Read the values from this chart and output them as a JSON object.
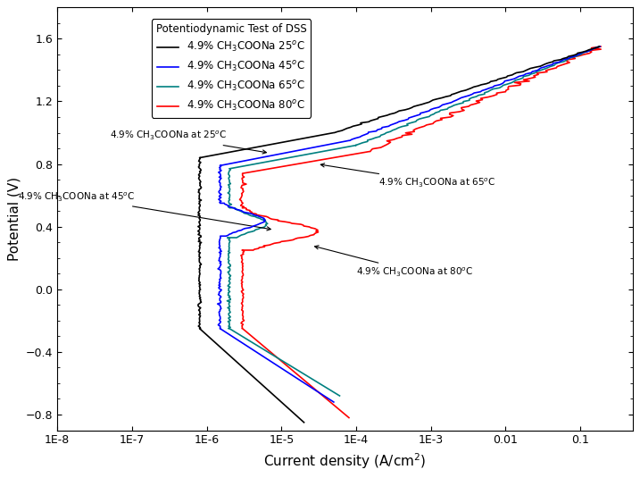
{
  "title": "Potentiodynamic Test of DSS",
  "xlabel": "Current density (A/cm$^2$)",
  "ylabel": "Potential (V)",
  "ylim": [
    -0.9,
    1.8
  ],
  "yticks": [
    -0.8,
    -0.4,
    0.0,
    0.4,
    0.8,
    1.2,
    1.6
  ],
  "xtick_labels": [
    "1E-8",
    "1E-7",
    "1E-6",
    "1E-5",
    "1E-4",
    "1E-3",
    "0.01",
    "0.1"
  ],
  "xtick_vals": [
    1e-08,
    1e-07,
    1e-06,
    1e-05,
    0.0001,
    0.001,
    0.01,
    0.1
  ],
  "colors": {
    "25C": "#000000",
    "45C": "#0000FF",
    "65C": "#008080",
    "80C": "#FF0000"
  },
  "legend_labels": [
    "4.9% CH$_3$COONa 25$^o$C",
    "4.9% CH$_3$COONa 45$^o$C",
    "4.9% CH$_3$COONa 65$^o$C",
    "4.9% CH$_3$COONa 80$^o$C"
  ],
  "legend_title": "Potentiodynamic Test of DSS",
  "annotation_25": "4.9% CH$_3$COONa at 25$^o$C",
  "annotation_45": "4.9% CH$_3$COONa at 45$^o$C",
  "annotation_65": "4.9% CH$_3$COONa at 65$^o$C",
  "annotation_80": "4.9% CH$_3$COONa at 80$^o$C",
  "background_color": "#ffffff",
  "line_width": 1.2
}
